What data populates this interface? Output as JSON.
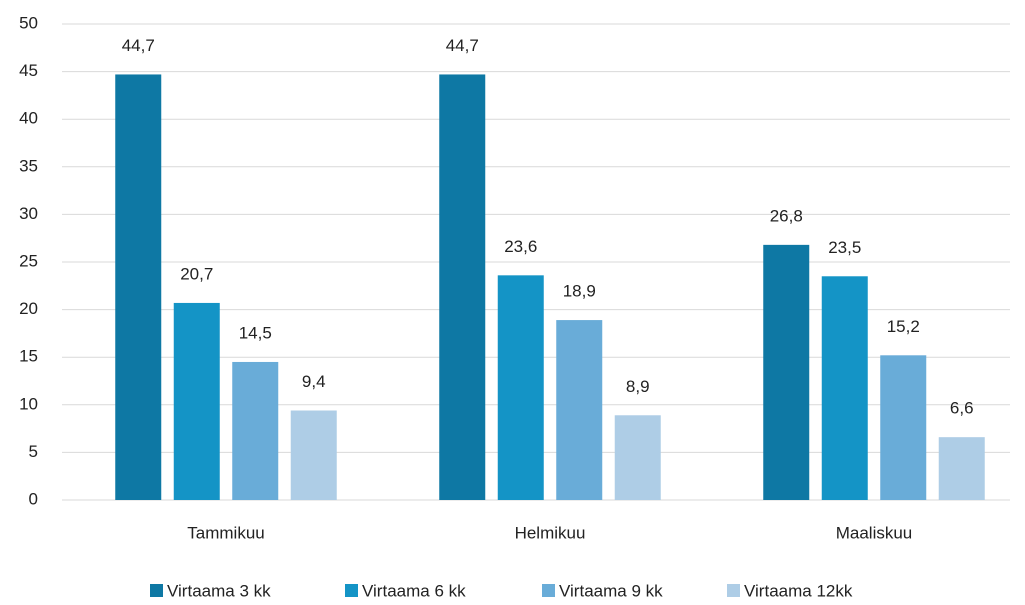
{
  "chart_data": {
    "type": "bar",
    "categories": [
      "Tammikuu",
      "Helmikuu",
      "Maaliskuu"
    ],
    "series": [
      {
        "name": "Virtaama 3 kk",
        "color": "#0e78a4",
        "values": [
          44.7,
          44.7,
          26.8
        ],
        "value_labels": [
          "44,7",
          "44,7",
          "26,8"
        ]
      },
      {
        "name": "Virtaama 6 kk",
        "color": "#1494c6",
        "values": [
          20.7,
          23.6,
          23.5
        ],
        "value_labels": [
          "20,7",
          "23,6",
          "23,5"
        ]
      },
      {
        "name": "Virtaama 9 kk",
        "color": "#69acd8",
        "values": [
          14.5,
          18.9,
          15.2
        ],
        "value_labels": [
          "14,5",
          "18,9",
          "15,2"
        ]
      },
      {
        "name": "Virtaama 12kk",
        "color": "#aecde6",
        "values": [
          9.4,
          8.9,
          6.6
        ],
        "value_labels": [
          "9,4",
          "8,9",
          "6,6"
        ]
      }
    ],
    "ylim": [
      0,
      50
    ],
    "yticks": [
      0,
      5,
      10,
      15,
      20,
      25,
      30,
      35,
      40,
      45,
      50
    ],
    "grid": true,
    "legend": "bottom"
  }
}
